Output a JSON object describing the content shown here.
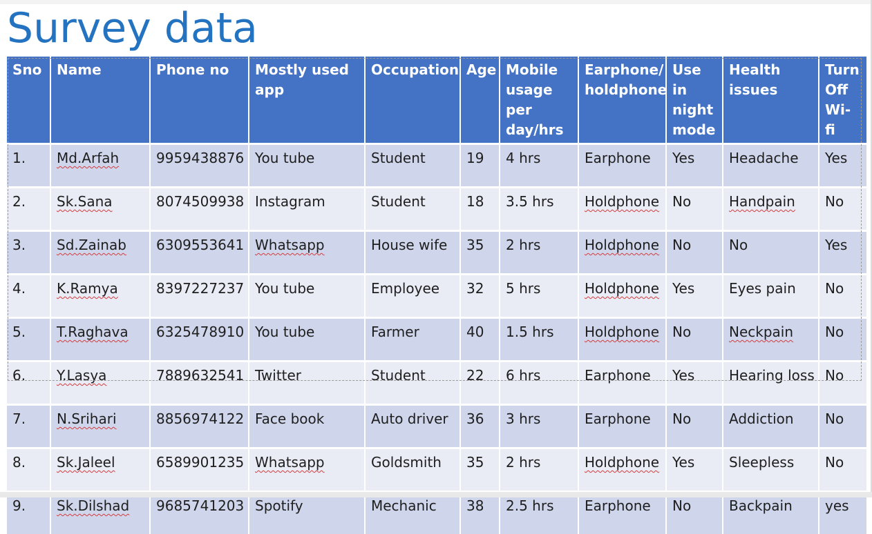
{
  "title": "Survey data",
  "headers": [
    "Sno",
    "Name",
    "Phone no",
    "Mostly used app",
    "Occupation",
    "Age",
    "Mobile usage per day/hrs",
    "Earphone/ holdphone",
    "Use in night mode",
    "Health issues",
    "Turn Off Wi-fi"
  ],
  "rows": [
    [
      "1.",
      "Md.Arfah",
      "9959438876",
      "You tube",
      "Student",
      "19",
      "4 hrs",
      "Earphone",
      "Yes",
      "Headache",
      "Yes"
    ],
    [
      "2.",
      "Sk.Sana",
      "8074509938",
      "Instagram",
      "Student",
      "18",
      "3.5 hrs",
      "Holdphone",
      "No",
      "Handpain",
      "No"
    ],
    [
      "3.",
      "Sd.Zainab",
      "6309553641",
      "Whatsapp",
      "House wife",
      "35",
      "2 hrs",
      "Holdphone",
      "No",
      "No",
      "Yes"
    ],
    [
      "4.",
      "K.Ramya",
      "8397227237",
      "You tube",
      "Employee",
      "32",
      "5 hrs",
      "Holdphone",
      "Yes",
      "Eyes pain",
      "No"
    ],
    [
      "5.",
      "T.Raghava",
      "6325478910",
      "You tube",
      "Farmer",
      "40",
      "1.5 hrs",
      "Holdphone",
      "No",
      "Neckpain",
      "No"
    ],
    [
      "6.",
      "Y.Lasya",
      "7889632541",
      "Twitter",
      "Student",
      "22",
      "6 hrs",
      "Earphone",
      "Yes",
      "Hearing loss",
      "No"
    ],
    [
      "7.",
      "N.Srihari",
      "8856974122",
      "Face book",
      "Auto driver",
      "36",
      "3 hrs",
      "Earphone",
      "No",
      "Addiction",
      "No"
    ],
    [
      "8.",
      "Sk.Jaleel",
      "6589901235",
      "Whatsapp",
      "Goldsmith",
      "35",
      "2 hrs",
      "Holdphone",
      "Yes",
      "Sleepless",
      "No"
    ],
    [
      "9.",
      "Sk.Dilshad",
      "9685741203",
      "Spotify",
      "Mechanic",
      "38",
      "2.5 hrs",
      "Earphone",
      "No",
      "Backpain",
      "yes"
    ]
  ],
  "colors": {
    "title": "#2473c1",
    "header_bg": "#4472c4",
    "row_dark": "#cfd5ea",
    "row_light": "#e9ebf5",
    "spellcheck": "#d43b3b"
  }
}
